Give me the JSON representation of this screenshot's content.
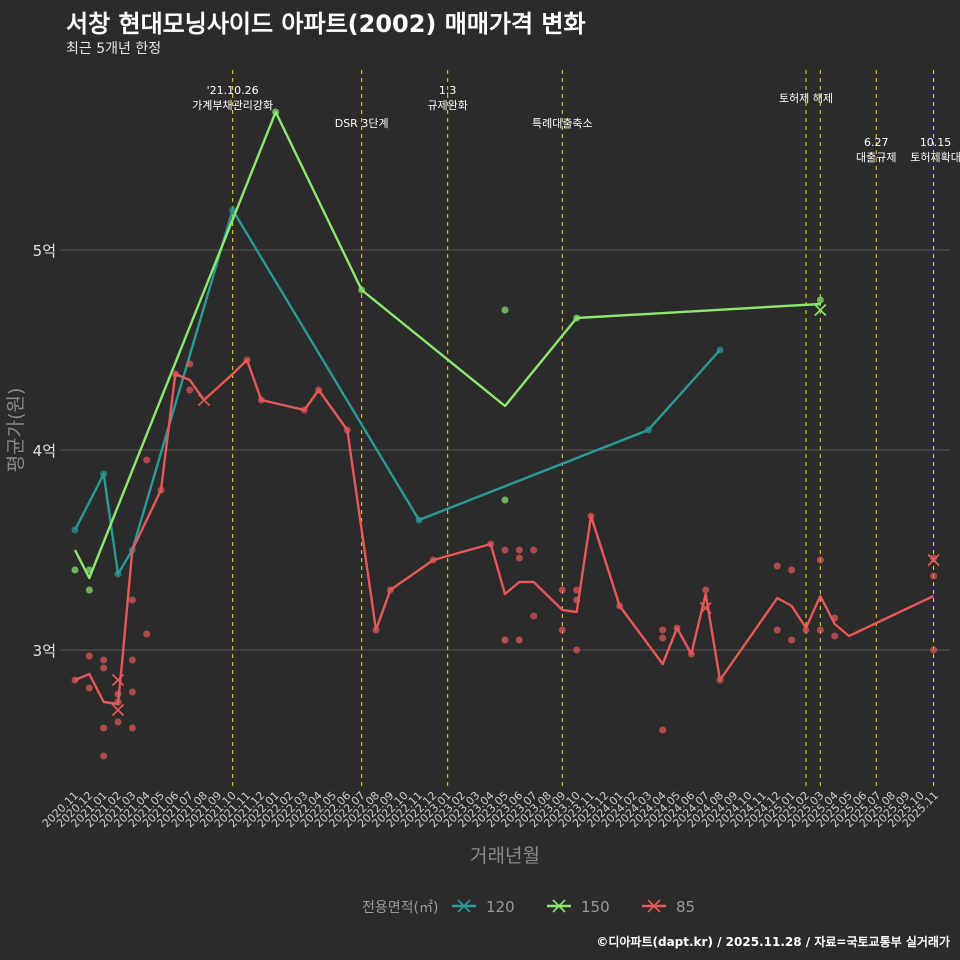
{
  "title": "서창 현대모닝사이드 아파트(2002) 매매가격 변화",
  "subtitle": "최근 5개년 한정",
  "caption": "©디아파트(dapt.kr) / 2025.11.28 / 자료=국토교통부 실거래가",
  "colors": {
    "background": "#2b2b2b",
    "grid": "#5a5a5a",
    "event_line": "#e8e000",
    "series_120": "#2a9a98",
    "series_150": "#8ee870",
    "series_85": "#e85858"
  },
  "chart_data": {
    "type": "line",
    "xlabel": "거래년월",
    "ylabel": "평균가(원)",
    "ylim": [
      2.3,
      5.9
    ],
    "yticks": [
      {
        "value": 3,
        "label": "3억"
      },
      {
        "value": 4,
        "label": "4억"
      },
      {
        "value": 5,
        "label": "5억"
      }
    ],
    "categories": [
      "2020.11",
      "2020.12",
      "2021.01",
      "2021.02",
      "2021.03",
      "2021.04",
      "2021.05",
      "2021.06",
      "2021.07",
      "2021.08",
      "2021.09",
      "2021.10",
      "2021.11",
      "2021.12",
      "2022.01",
      "2022.02",
      "2022.03",
      "2022.04",
      "2022.05",
      "2022.06",
      "2022.07",
      "2022.08",
      "2022.09",
      "2022.10",
      "2022.11",
      "2022.12",
      "2023.01",
      "2023.02",
      "2023.03",
      "2023.04",
      "2023.05",
      "2023.06",
      "2023.07",
      "2023.08",
      "2023.09",
      "2023.10",
      "2023.11",
      "2023.12",
      "2024.01",
      "2024.02",
      "2024.03",
      "2024.04",
      "2024.05",
      "2024.06",
      "2024.07",
      "2024.08",
      "2024.09",
      "2024.10",
      "2024.11",
      "2024.12",
      "2025.01",
      "2025.02",
      "2025.03",
      "2025.04",
      "2025.05",
      "2025.06",
      "2025.07",
      "2025.08",
      "2025.09",
      "2025.10",
      "2025.11"
    ],
    "legend": {
      "title": "전용면적(㎡)",
      "position": "bottom",
      "entries": [
        "120",
        "150",
        "85"
      ]
    },
    "events": [
      {
        "x": 11,
        "label_lines": [
          "'21.10.26",
          "가계부채관리강화"
        ],
        "tier": 1
      },
      {
        "x": 20,
        "label_lines": [
          "DSR 3단계"
        ],
        "tier": 2
      },
      {
        "x": 26,
        "label_lines": [
          "1.3",
          "규제완화"
        ],
        "tier": 1
      },
      {
        "x": 34,
        "label_lines": [
          "특례대출축소"
        ],
        "tier": 2
      },
      {
        "x": 51,
        "label_lines": [
          "토허제 해제"
        ],
        "tier": 0
      },
      {
        "x": 52,
        "label_lines": [],
        "tier": 0
      },
      {
        "x": 55.9,
        "label_lines": [
          "6.27",
          "대출규제"
        ],
        "tier": 3
      },
      {
        "x": 59.9,
        "label_lines": [
          "10.15",
          "토허제확대"
        ],
        "tier": 3
      }
    ],
    "series": [
      {
        "name": "120",
        "color_key": "series_120",
        "line": [
          [
            0,
            3.6
          ],
          [
            2,
            3.88
          ],
          [
            3,
            3.38
          ],
          [
            4,
            3.5
          ],
          [
            11,
            5.2
          ],
          [
            24,
            3.65
          ],
          [
            40,
            4.1
          ],
          [
            45,
            4.5
          ]
        ],
        "points": [
          [
            0,
            3.6
          ],
          [
            2,
            3.88
          ],
          [
            3,
            3.38
          ],
          [
            4,
            3.5
          ],
          [
            11,
            5.2
          ],
          [
            24,
            3.65
          ],
          [
            40,
            4.1
          ],
          [
            45,
            4.5
          ]
        ],
        "cancelled": []
      },
      {
        "name": "150",
        "color_key": "series_150",
        "line": [
          [
            0,
            3.5
          ],
          [
            1,
            3.36
          ],
          [
            14,
            5.69
          ],
          [
            20,
            4.8
          ],
          [
            30,
            4.22
          ],
          [
            35,
            4.66
          ],
          [
            52,
            4.73
          ]
        ],
        "points": [
          [
            0,
            3.4
          ],
          [
            1,
            3.4
          ],
          [
            1,
            3.3
          ],
          [
            14,
            5.69
          ],
          [
            20,
            4.8
          ],
          [
            30,
            4.7
          ],
          [
            30,
            3.75
          ],
          [
            35,
            4.66
          ],
          [
            52,
            4.75
          ]
        ],
        "cancelled": [
          [
            52,
            4.7
          ]
        ]
      },
      {
        "name": "85",
        "color_key": "series_85",
        "line": [
          [
            0,
            2.85
          ],
          [
            1,
            2.88
          ],
          [
            2,
            2.74
          ],
          [
            3,
            2.73
          ],
          [
            3.3,
            2.95
          ],
          [
            4,
            3.5
          ],
          [
            6,
            3.8
          ],
          [
            7,
            4.38
          ],
          [
            8,
            4.35
          ],
          [
            9,
            4.25
          ],
          [
            11,
            4.38
          ],
          [
            12,
            4.45
          ],
          [
            13,
            4.25
          ],
          [
            16,
            4.2
          ],
          [
            17,
            4.3
          ],
          [
            19,
            4.1
          ],
          [
            21,
            3.1
          ],
          [
            22,
            3.3
          ],
          [
            25,
            3.45
          ],
          [
            29,
            3.53
          ],
          [
            30,
            3.28
          ],
          [
            31,
            3.34
          ],
          [
            32,
            3.34
          ],
          [
            34,
            3.2
          ],
          [
            35,
            3.19
          ],
          [
            36,
            3.67
          ],
          [
            38,
            3.22
          ],
          [
            41,
            2.93
          ],
          [
            42,
            3.11
          ],
          [
            43,
            2.98
          ],
          [
            44,
            3.28
          ],
          [
            45,
            2.85
          ],
          [
            49,
            3.26
          ],
          [
            50,
            3.22
          ],
          [
            51,
            3.11
          ],
          [
            52,
            3.27
          ],
          [
            53,
            3.13
          ],
          [
            54,
            3.07
          ],
          [
            59.9,
            3.27
          ]
        ],
        "points": [
          [
            0,
            2.85
          ],
          [
            1,
            2.97
          ],
          [
            1,
            2.81
          ],
          [
            2,
            2.95
          ],
          [
            2,
            2.91
          ],
          [
            2,
            2.61
          ],
          [
            2,
            2.47
          ],
          [
            3,
            2.78
          ],
          [
            3,
            2.74
          ],
          [
            3,
            2.64
          ],
          [
            4,
            2.79
          ],
          [
            4,
            2.61
          ],
          [
            4,
            2.95
          ],
          [
            4,
            3.25
          ],
          [
            5,
            3.95
          ],
          [
            5,
            3.08
          ],
          [
            6,
            3.8
          ],
          [
            7,
            4.38
          ],
          [
            8,
            4.43
          ],
          [
            8,
            4.3
          ],
          [
            12,
            4.45
          ],
          [
            13,
            4.25
          ],
          [
            16,
            4.2
          ],
          [
            17,
            4.3
          ],
          [
            19,
            4.1
          ],
          [
            21,
            3.1
          ],
          [
            22,
            3.3
          ],
          [
            25,
            3.45
          ],
          [
            29,
            3.53
          ],
          [
            30,
            3.5
          ],
          [
            30,
            3.05
          ],
          [
            31,
            3.5
          ],
          [
            31,
            3.46
          ],
          [
            31,
            3.05
          ],
          [
            32,
            3.5
          ],
          [
            32,
            3.17
          ],
          [
            34,
            3.3
          ],
          [
            34,
            3.1
          ],
          [
            35,
            3.3
          ],
          [
            35,
            3.25
          ],
          [
            35,
            3.0
          ],
          [
            36,
            3.67
          ],
          [
            38,
            3.22
          ],
          [
            41,
            3.1
          ],
          [
            41,
            3.06
          ],
          [
            41,
            2.6
          ],
          [
            42,
            3.11
          ],
          [
            43,
            2.98
          ],
          [
            44,
            3.3
          ],
          [
            45,
            2.85
          ],
          [
            49,
            3.42
          ],
          [
            49,
            3.1
          ],
          [
            50,
            3.4
          ],
          [
            50,
            3.05
          ],
          [
            51,
            3.1
          ],
          [
            52,
            3.45
          ],
          [
            52,
            3.1
          ],
          [
            53,
            3.16
          ],
          [
            53,
            3.07
          ],
          [
            59.9,
            3.46
          ],
          [
            59.9,
            3.37
          ],
          [
            59.9,
            3.0
          ]
        ],
        "cancelled": [
          [
            3,
            2.85
          ],
          [
            3,
            2.7
          ],
          [
            9,
            4.25
          ],
          [
            44,
            3.21
          ],
          [
            59.9,
            3.45
          ]
        ]
      }
    ]
  }
}
